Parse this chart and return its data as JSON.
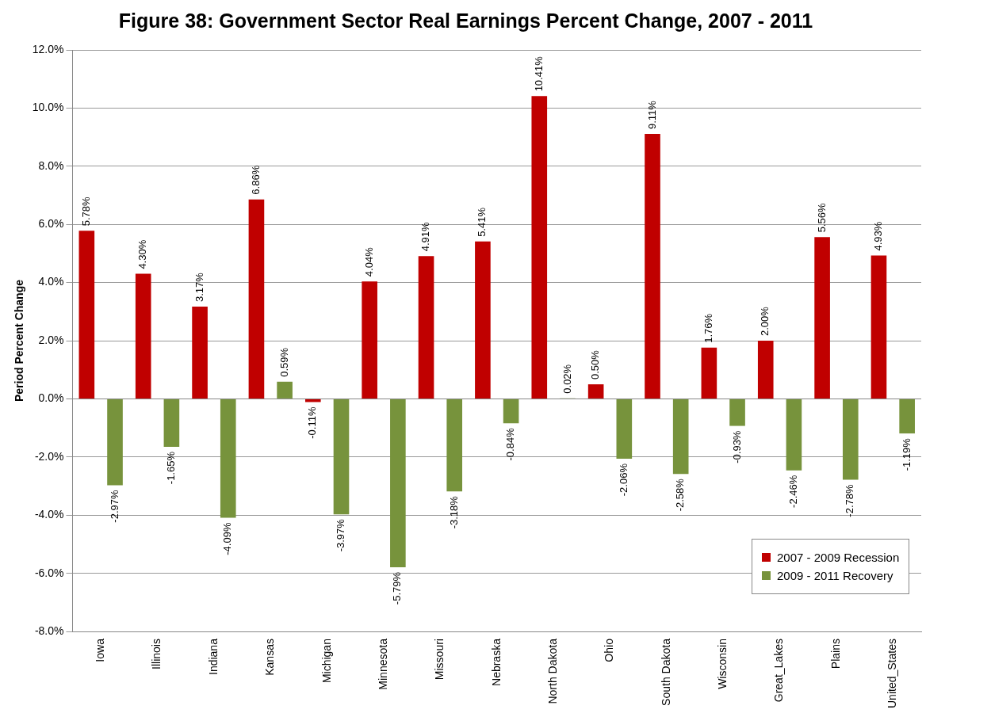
{
  "chart_data": {
    "type": "bar",
    "title": "Figure 38: Government Sector Real Earnings Percent Change, 2007 - 2011",
    "ylabel": "Period Percent Change",
    "categories": [
      "Iowa",
      "Illinois",
      "Indiana",
      "Kansas",
      "Michigan",
      "Minnesota",
      "Missouri",
      "Nebraska",
      "North Dakota",
      "Ohio",
      "South Dakota",
      "Wisconsin",
      "Great_Lakes",
      "Plains",
      "United_States"
    ],
    "series": [
      {
        "name": "2007 - 2009 Recession",
        "color": "#c00000",
        "values": [
          5.78,
          4.3,
          3.17,
          6.86,
          -0.11,
          4.04,
          4.91,
          5.41,
          10.41,
          0.5,
          9.11,
          1.76,
          2.0,
          5.56,
          4.93
        ],
        "value_labels": [
          "5.78%",
          "4.30%",
          "3.17%",
          "6.86%",
          "-0.11%",
          "4.04%",
          "4.91%",
          "5.41%",
          "10.41%",
          "0.50%",
          "9.11%",
          "1.76%",
          "2.00%",
          "5.56%",
          "4.93%"
        ]
      },
      {
        "name": "2009 - 2011 Recovery",
        "color": "#77933c",
        "values": [
          -2.97,
          -1.65,
          -4.09,
          0.59,
          -3.97,
          -5.79,
          -3.18,
          -0.84,
          0.02,
          -2.06,
          -2.58,
          -0.93,
          -2.46,
          -2.78,
          -1.19
        ],
        "value_labels": [
          "-2.97%",
          "-1.65%",
          "-4.09%",
          "0.59%",
          "-3.97%",
          "-5.79%",
          "-3.18%",
          "-0.84%",
          "0.02%",
          "-2.06%",
          "-2.58%",
          "-0.93%",
          "-2.46%",
          "-2.78%",
          "-1.19%"
        ]
      }
    ],
    "ylim": [
      -8,
      12
    ],
    "yticks": [
      {
        "value": -8,
        "label": "-8.0%"
      },
      {
        "value": -6,
        "label": "-6.0%"
      },
      {
        "value": -4,
        "label": "-4.0%"
      },
      {
        "value": -2,
        "label": "-2.0%"
      },
      {
        "value": 0,
        "label": "0.0%"
      },
      {
        "value": 2,
        "label": "2.0%"
      },
      {
        "value": 4,
        "label": "4.0%"
      },
      {
        "value": 6,
        "label": "6.0%"
      },
      {
        "value": 8,
        "label": "8.0%"
      },
      {
        "value": 10,
        "label": "10.0%"
      },
      {
        "value": 12,
        "label": "12.0%"
      }
    ],
    "grid": "y",
    "legend": "bottom right"
  }
}
